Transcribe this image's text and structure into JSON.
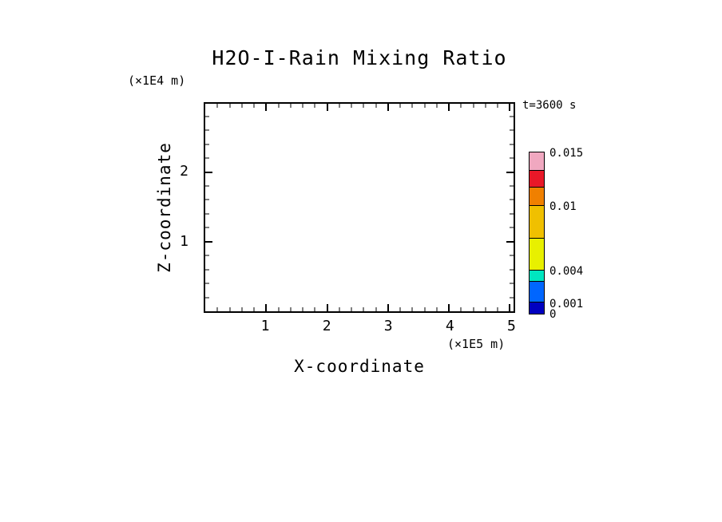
{
  "title": "H2O-I-Rain Mixing Ratio",
  "time_label": "t=3600 s",
  "axes": {
    "x": {
      "label": "X-coordinate",
      "unit": "(×1E5 m)",
      "min": 0,
      "max": 5.06,
      "major_ticks": [
        1,
        2,
        3,
        4,
        5
      ],
      "minor_step": 0.2
    },
    "z": {
      "label": "Z-coordinate",
      "unit": "(×1E4 m)",
      "min": 0,
      "max": 2.98,
      "major_ticks": [
        1,
        2
      ],
      "minor_step": 0.2
    }
  },
  "colorbar": {
    "min": 0,
    "max": 0.015,
    "levels": [
      0,
      0.001,
      0.003,
      0.004,
      0.007,
      0.01,
      0.0117,
      0.0133,
      0.015
    ],
    "colors": [
      "#0000C0",
      "#0066FF",
      "#00E6C0",
      "#E8F000",
      "#F0C000",
      "#F08000",
      "#E81828",
      "#F0A8C0"
    ],
    "tick_labels": [
      {
        "value": 0.015,
        "text": "0.015"
      },
      {
        "value": 0.01,
        "text": "0.01"
      },
      {
        "value": 0.004,
        "text": "0.004"
      },
      {
        "value": 0.001,
        "text": "0.001"
      },
      {
        "value": 0,
        "text": "0"
      }
    ]
  },
  "chart_data": {
    "type": "heatmap",
    "title": "H2O-I-Rain Mixing Ratio",
    "xlabel": "X-coordinate (×1E5 m)",
    "ylabel": "Z-coordinate (×1E4 m)",
    "xlim": [
      0,
      5.06
    ],
    "ylim": [
      0,
      2.98
    ],
    "x_ticks": [
      1,
      2,
      3,
      4,
      5
    ],
    "z_ticks": [
      1,
      2
    ],
    "time": "t=3600 s",
    "values": [],
    "contour_levels": [
      0,
      0.001,
      0.003,
      0.004,
      0.007,
      0.01,
      0.0117,
      0.0133,
      0.015
    ],
    "colorbar_colors": [
      "#0000C0",
      "#0066FF",
      "#00E6C0",
      "#E8F000",
      "#F0C000",
      "#F08000",
      "#E81828",
      "#F0A8C0"
    ],
    "colorbar_labels": [
      "0",
      "0.001",
      "0.004",
      "0.01",
      "0.015"
    ],
    "note": "plot area is blank: mixing ratio field below lowest contour level everywhere at t=3600 s"
  }
}
